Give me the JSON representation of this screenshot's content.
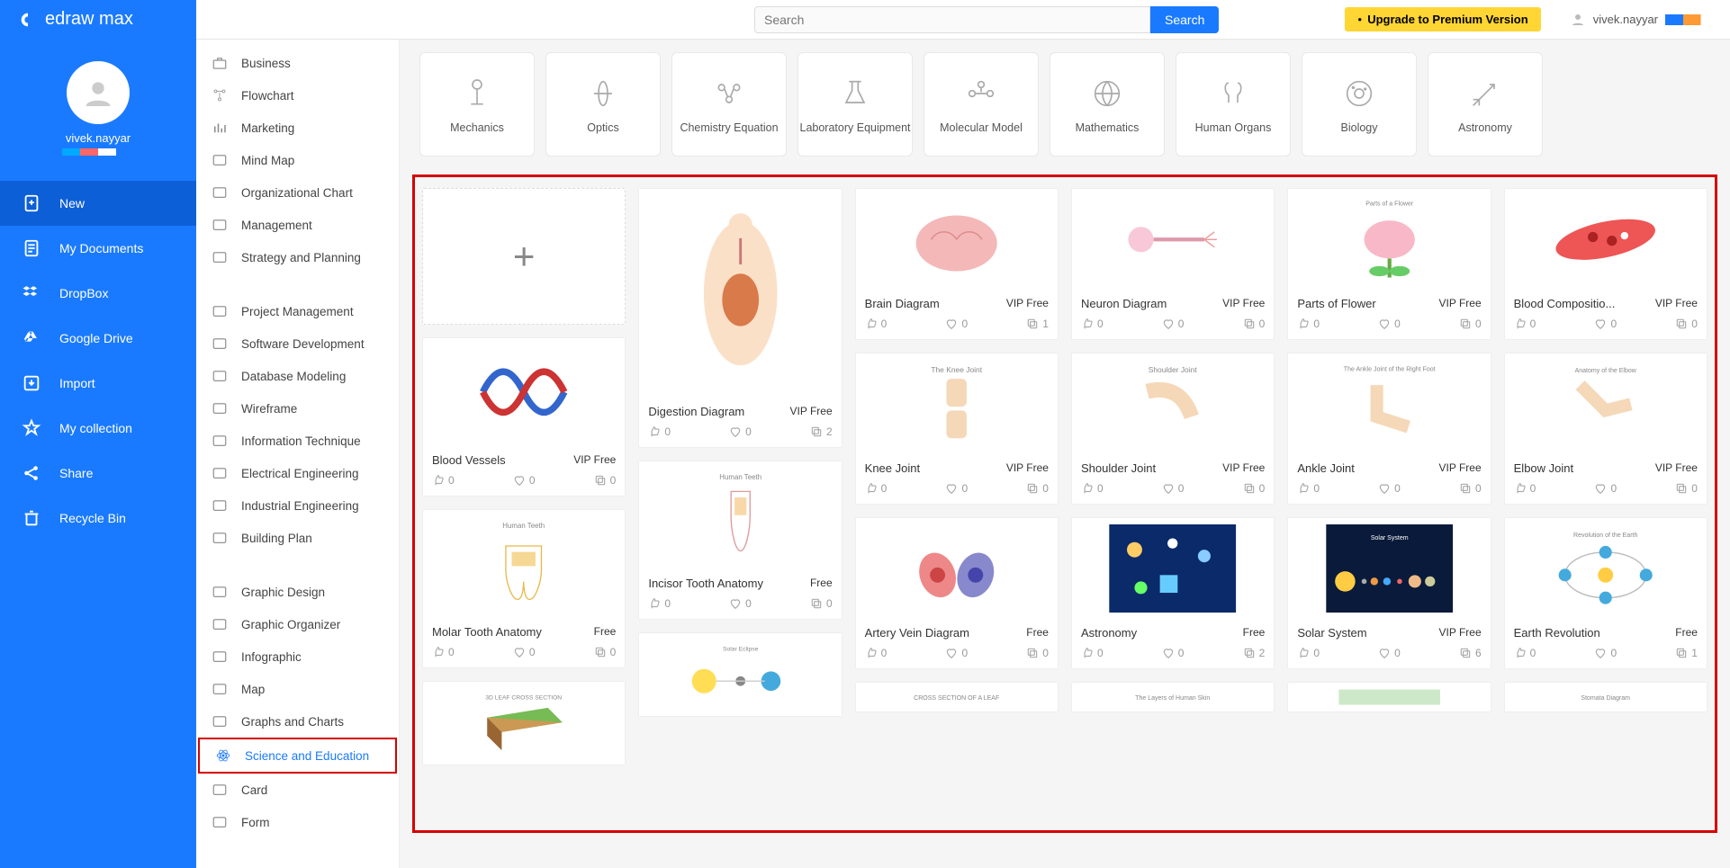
{
  "brand": "edraw max",
  "search": {
    "placeholder": "Search",
    "button": "Search"
  },
  "upgrade": "Upgrade to Premium Version",
  "user": "vivek.nayyar",
  "sidebar": {
    "username": "vivek.nayyar",
    "items": [
      {
        "label": "New",
        "icon": "plus-doc"
      },
      {
        "label": "My Documents",
        "icon": "doc"
      },
      {
        "label": "DropBox",
        "icon": "dropbox"
      },
      {
        "label": "Google Drive",
        "icon": "gdrive"
      },
      {
        "label": "Import",
        "icon": "import"
      },
      {
        "label": "My collection",
        "icon": "star"
      },
      {
        "label": "Share",
        "icon": "share"
      },
      {
        "label": "Recycle Bin",
        "icon": "trash"
      }
    ],
    "active_index": 0
  },
  "categories": [
    {
      "label": "Business",
      "icon": "briefcase"
    },
    {
      "label": "Flowchart",
      "icon": "flow"
    },
    {
      "label": "Marketing",
      "icon": "bars"
    },
    {
      "label": "Mind Map",
      "icon": "mind"
    },
    {
      "label": "Organizational Chart",
      "icon": "org"
    },
    {
      "label": "Management",
      "icon": "gear"
    },
    {
      "label": "Strategy and Planning",
      "icon": "target"
    },
    {
      "spacer": true
    },
    {
      "label": "Project Management",
      "icon": "grid"
    },
    {
      "label": "Software Development",
      "icon": "tree"
    },
    {
      "label": "Database Modeling",
      "icon": "db"
    },
    {
      "label": "Wireframe",
      "icon": "wire"
    },
    {
      "label": "Information Technique",
      "icon": "info"
    },
    {
      "label": "Electrical Engineering",
      "icon": "elec"
    },
    {
      "label": "Industrial Engineering",
      "icon": "ind"
    },
    {
      "label": "Building Plan",
      "icon": "build"
    },
    {
      "spacer": true
    },
    {
      "label": "Graphic Design",
      "icon": "design"
    },
    {
      "label": "Graphic Organizer",
      "icon": "gorg"
    },
    {
      "label": "Infographic",
      "icon": "infog"
    },
    {
      "label": "Map",
      "icon": "map"
    },
    {
      "label": "Graphs and Charts",
      "icon": "chart"
    },
    {
      "label": "Science and Education",
      "icon": "atom",
      "selected": true
    },
    {
      "label": "Card",
      "icon": "card"
    },
    {
      "label": "Form",
      "icon": "form"
    }
  ],
  "subcategories": [
    {
      "label": "Mechanics",
      "icon": "mechanics"
    },
    {
      "label": "Optics",
      "icon": "optics"
    },
    {
      "label": "Chemistry Equation",
      "icon": "chem"
    },
    {
      "label": "Laboratory Equipment",
      "icon": "lab"
    },
    {
      "label": "Molecular Model",
      "icon": "mol"
    },
    {
      "label": "Mathematics",
      "icon": "math"
    },
    {
      "label": "Human Organs",
      "icon": "organs"
    },
    {
      "label": "Biology",
      "icon": "bio"
    },
    {
      "label": "Astronomy",
      "icon": "astro"
    }
  ],
  "templates": [
    {
      "blank": true,
      "col": 1,
      "thumb_h": 152
    },
    {
      "title": "Blood Vessels",
      "badge": "VIP Free",
      "likes": 0,
      "hearts": 0,
      "copies": 0,
      "thumb": "bloodvessels",
      "col": 1,
      "thumb_h": 120
    },
    {
      "title": "Molar Tooth Anatomy",
      "badge": "Free",
      "likes": 0,
      "hearts": 0,
      "copies": 0,
      "thumb": "molar",
      "col": 1,
      "thumb_h": 120
    },
    {
      "title": "3D LEAF CROSS SECTION",
      "thumb": "leaf3d",
      "col": 1,
      "thumb_h": 92,
      "partial": true
    },
    {
      "title": "Digestion Diagram",
      "badge": "VIP Free",
      "likes": 0,
      "hearts": 0,
      "copies": 2,
      "thumb": "digestion",
      "col": 2,
      "thumb_h": 232
    },
    {
      "title": "Incisor Tooth Anatomy",
      "badge": "Free",
      "likes": 0,
      "hearts": 0,
      "copies": 0,
      "thumb": "incisor",
      "col": 2,
      "thumb_h": 120
    },
    {
      "title": "Solar Eclipse",
      "thumb": "eclipse",
      "col": 2,
      "thumb_h": 92,
      "partial": true
    },
    {
      "title": "Brain Diagram",
      "badge": "VIP Free",
      "likes": 0,
      "hearts": 0,
      "copies": 1,
      "thumb": "brain",
      "col": 3,
      "thumb_h": 112
    },
    {
      "title": "Knee Joint",
      "badge": "VIP Free",
      "likes": 0,
      "hearts": 0,
      "copies": 0,
      "thumb": "knee",
      "col": 3,
      "thumb_h": 112
    },
    {
      "title": "Artery Vein Diagram",
      "badge": "Free",
      "likes": 0,
      "hearts": 0,
      "copies": 0,
      "thumb": "artery",
      "col": 3,
      "thumb_h": 112
    },
    {
      "title": "CROSS SECTION OF A LEAF",
      "thumb": "leafcs",
      "col": 3,
      "thumb_h": 32,
      "partial": true
    },
    {
      "title": "Neuron Diagram",
      "badge": "VIP Free",
      "likes": 0,
      "hearts": 0,
      "copies": 0,
      "thumb": "neuron",
      "col": 4,
      "thumb_h": 112
    },
    {
      "title": "Shoulder Joint",
      "badge": "VIP Free",
      "likes": 0,
      "hearts": 0,
      "copies": 0,
      "thumb": "shoulder",
      "col": 4,
      "thumb_h": 112
    },
    {
      "title": "Astronomy",
      "badge": "Free",
      "likes": 0,
      "hearts": 0,
      "copies": 2,
      "thumb": "astronomy",
      "col": 4,
      "thumb_h": 112
    },
    {
      "title": "The Layers of Human Skin",
      "thumb": "skin",
      "col": 4,
      "thumb_h": 32,
      "partial": true
    },
    {
      "title": "Parts of Flower",
      "badge": "VIP Free",
      "likes": 0,
      "hearts": 0,
      "copies": 0,
      "thumb": "flower",
      "col": 5,
      "thumb_h": 112
    },
    {
      "title": "Ankle Joint",
      "badge": "VIP Free",
      "likes": 0,
      "hearts": 0,
      "copies": 0,
      "thumb": "ankle",
      "col": 5,
      "thumb_h": 112
    },
    {
      "title": "Solar System",
      "badge": "VIP Free",
      "likes": 0,
      "hearts": 0,
      "copies": 6,
      "thumb": "solarsys",
      "col": 5,
      "thumb_h": 112
    },
    {
      "title": "",
      "thumb": "green",
      "col": 5,
      "thumb_h": 32,
      "partial": true
    },
    {
      "title": "Blood Compositio...",
      "badge": "VIP Free",
      "likes": 0,
      "hearts": 0,
      "copies": 0,
      "thumb": "bloodcomp",
      "col": 6,
      "thumb_h": 112
    },
    {
      "title": "Elbow Joint",
      "badge": "VIP Free",
      "likes": 0,
      "hearts": 0,
      "copies": 0,
      "thumb": "elbow",
      "col": 6,
      "thumb_h": 112
    },
    {
      "title": "Earth Revolution",
      "badge": "Free",
      "likes": 0,
      "hearts": 0,
      "copies": 1,
      "thumb": "earthrev",
      "col": 6,
      "thumb_h": 112
    },
    {
      "title": "Stomata Diagram",
      "thumb": "stomata",
      "col": 6,
      "thumb_h": 32,
      "partial": true
    }
  ],
  "colors": {
    "primary": "#1a7aff",
    "primary_dark": "#0d5fd8",
    "highlight_border": "#d60000",
    "upgrade_bg": "#ffd633"
  }
}
